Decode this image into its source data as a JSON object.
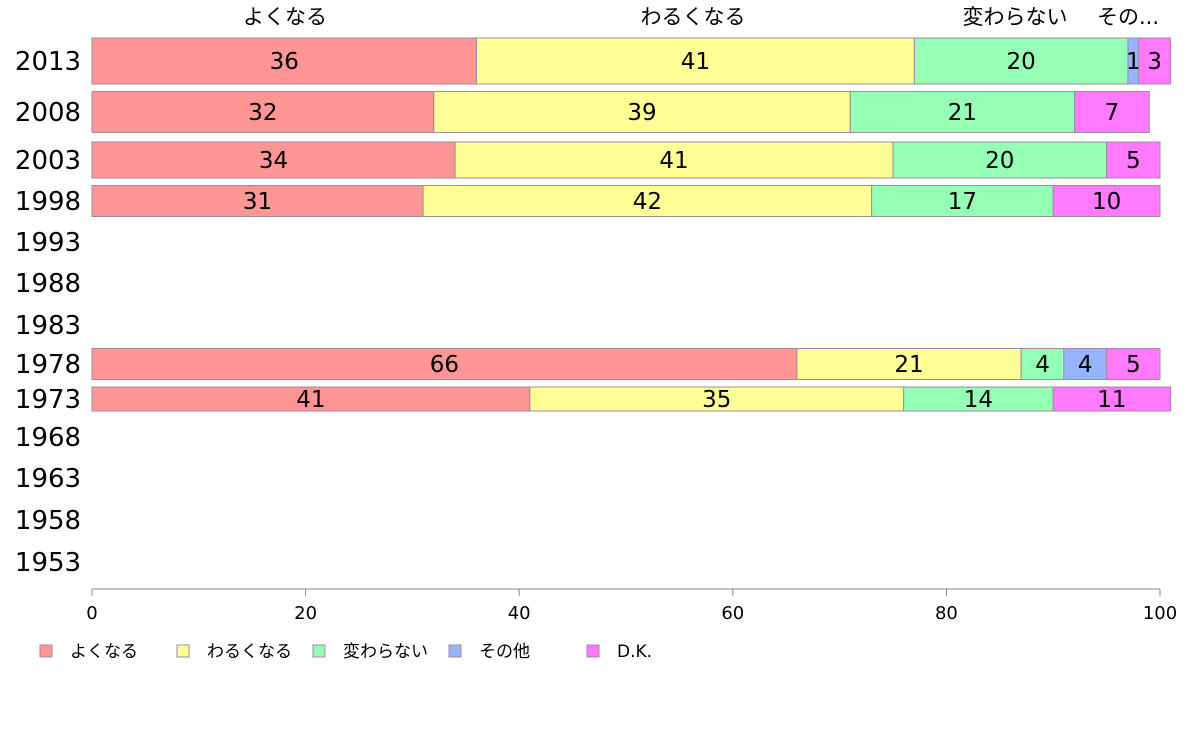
{
  "chart_data": {
    "type": "bar",
    "orientation": "horizontal",
    "stacked": true,
    "categories": [
      "2013",
      "2008",
      "2003",
      "1998",
      "1993",
      "1988",
      "1983",
      "1978",
      "1973",
      "1968",
      "1963",
      "1958",
      "1953"
    ],
    "series": [
      {
        "name": "よくなる",
        "color": "#ff9595",
        "values": [
          36,
          32,
          34,
          31,
          null,
          null,
          null,
          66,
          41,
          null,
          null,
          null,
          null
        ]
      },
      {
        "name": "わるくなる",
        "color": "#ffff95",
        "values": [
          41,
          39,
          41,
          42,
          null,
          null,
          null,
          21,
          35,
          null,
          null,
          null,
          null
        ]
      },
      {
        "name": "変わらない",
        "color": "#95ffb5",
        "values": [
          20,
          21,
          20,
          17,
          null,
          null,
          null,
          4,
          14,
          null,
          null,
          null,
          null
        ]
      },
      {
        "name": "その他",
        "color": "#95b5ff",
        "values": [
          1,
          null,
          null,
          null,
          null,
          null,
          null,
          4,
          null,
          null,
          null,
          null,
          null
        ]
      },
      {
        "name": "D.K.",
        "color": "#ff7aff",
        "values": [
          3,
          7,
          5,
          10,
          null,
          null,
          null,
          5,
          11,
          null,
          null,
          null,
          null
        ]
      }
    ],
    "top_labels": [
      "よくなる",
      "わるくなる",
      "変わらない",
      "その..."
    ],
    "xticks": [
      "0",
      "20",
      "40",
      "60",
      "80",
      "100"
    ],
    "xlim": [
      0,
      100
    ],
    "legend_position": "bottom-left",
    "grid": false
  }
}
